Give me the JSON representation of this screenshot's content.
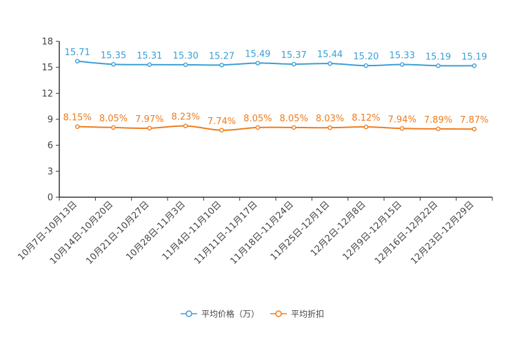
{
  "chart_data": {
    "type": "line",
    "title": "",
    "xlabel": "",
    "ylabel": "",
    "ylim": [
      0,
      18
    ],
    "yticks": [
      0,
      3,
      6,
      9,
      12,
      15,
      18
    ],
    "grid": false,
    "legend_position": "bottom",
    "categories": [
      "10月7日-10月13日",
      "10月14日-10月20日",
      "10月21日-10月27日",
      "10月28日-11月3日",
      "11月4日-11月10日",
      "11月11日-11月17日",
      "11月18日-11月24日",
      "11月25日-12月1日",
      "12月2日-12月8日",
      "12月9日-12月15日",
      "12月16日-12月22日",
      "12月23日-12月29日"
    ],
    "series": [
      {
        "name": "平均价格（万）",
        "color": "#3a9fd5",
        "values": [
          15.71,
          15.35,
          15.31,
          15.3,
          15.27,
          15.49,
          15.37,
          15.44,
          15.2,
          15.33,
          15.19,
          15.19
        ],
        "labels": [
          "15.71",
          "15.35",
          "15.31",
          "15.30",
          "15.27",
          "15.49",
          "15.37",
          "15.44",
          "15.20",
          "15.33",
          "15.19",
          "15.19"
        ]
      },
      {
        "name": "平均折扣",
        "color": "#f07b1a",
        "values": [
          8.15,
          8.05,
          7.97,
          8.23,
          7.74,
          8.05,
          8.05,
          8.03,
          8.12,
          7.94,
          7.89,
          7.87
        ],
        "labels": [
          "8.15%",
          "8.05%",
          "7.97%",
          "8.23%",
          "7.74%",
          "8.05%",
          "8.05%",
          "8.03%",
          "8.12%",
          "7.94%",
          "7.89%",
          "7.87%"
        ]
      }
    ]
  }
}
